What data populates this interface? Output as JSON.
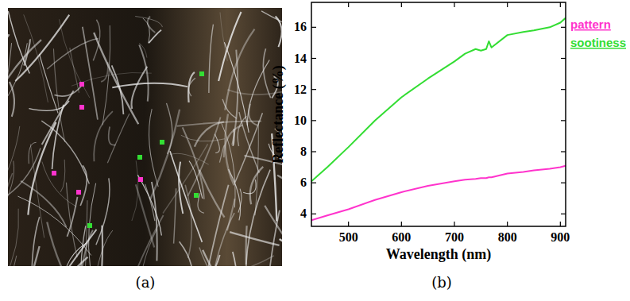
{
  "chart_data": {
    "type": "line",
    "title": "(b)",
    "annotations": [
      "(a)"
    ],
    "x_label": "Wavelength (nm)",
    "y_label": "Reflectance (%)",
    "x": [
      430,
      460,
      500,
      550,
      600,
      650,
      700,
      720,
      740,
      750,
      760,
      765,
      770,
      800,
      830,
      850,
      880,
      900,
      910
    ],
    "series": [
      {
        "name": "pattern",
        "color": "#ff33cc",
        "values": [
          3.6,
          3.9,
          4.3,
          4.9,
          5.4,
          5.8,
          6.1,
          6.2,
          6.25,
          6.3,
          6.3,
          6.35,
          6.35,
          6.6,
          6.7,
          6.8,
          6.9,
          7.0,
          7.1
        ]
      },
      {
        "name": "sootiness",
        "color": "#33dd33",
        "values": [
          6.1,
          7.0,
          8.3,
          10.0,
          11.5,
          12.7,
          13.8,
          14.3,
          14.6,
          14.5,
          14.6,
          15.1,
          14.7,
          15.5,
          15.7,
          15.8,
          16.0,
          16.3,
          16.6
        ]
      }
    ],
    "xlim": [
      430,
      910
    ],
    "xticks": [
      500,
      600,
      700,
      800,
      900
    ],
    "ylim": [
      3.2,
      17.6
    ],
    "yticks": [
      4,
      6,
      8,
      10,
      12,
      14,
      16
    ],
    "legend": "right",
    "grid": false
  }
}
